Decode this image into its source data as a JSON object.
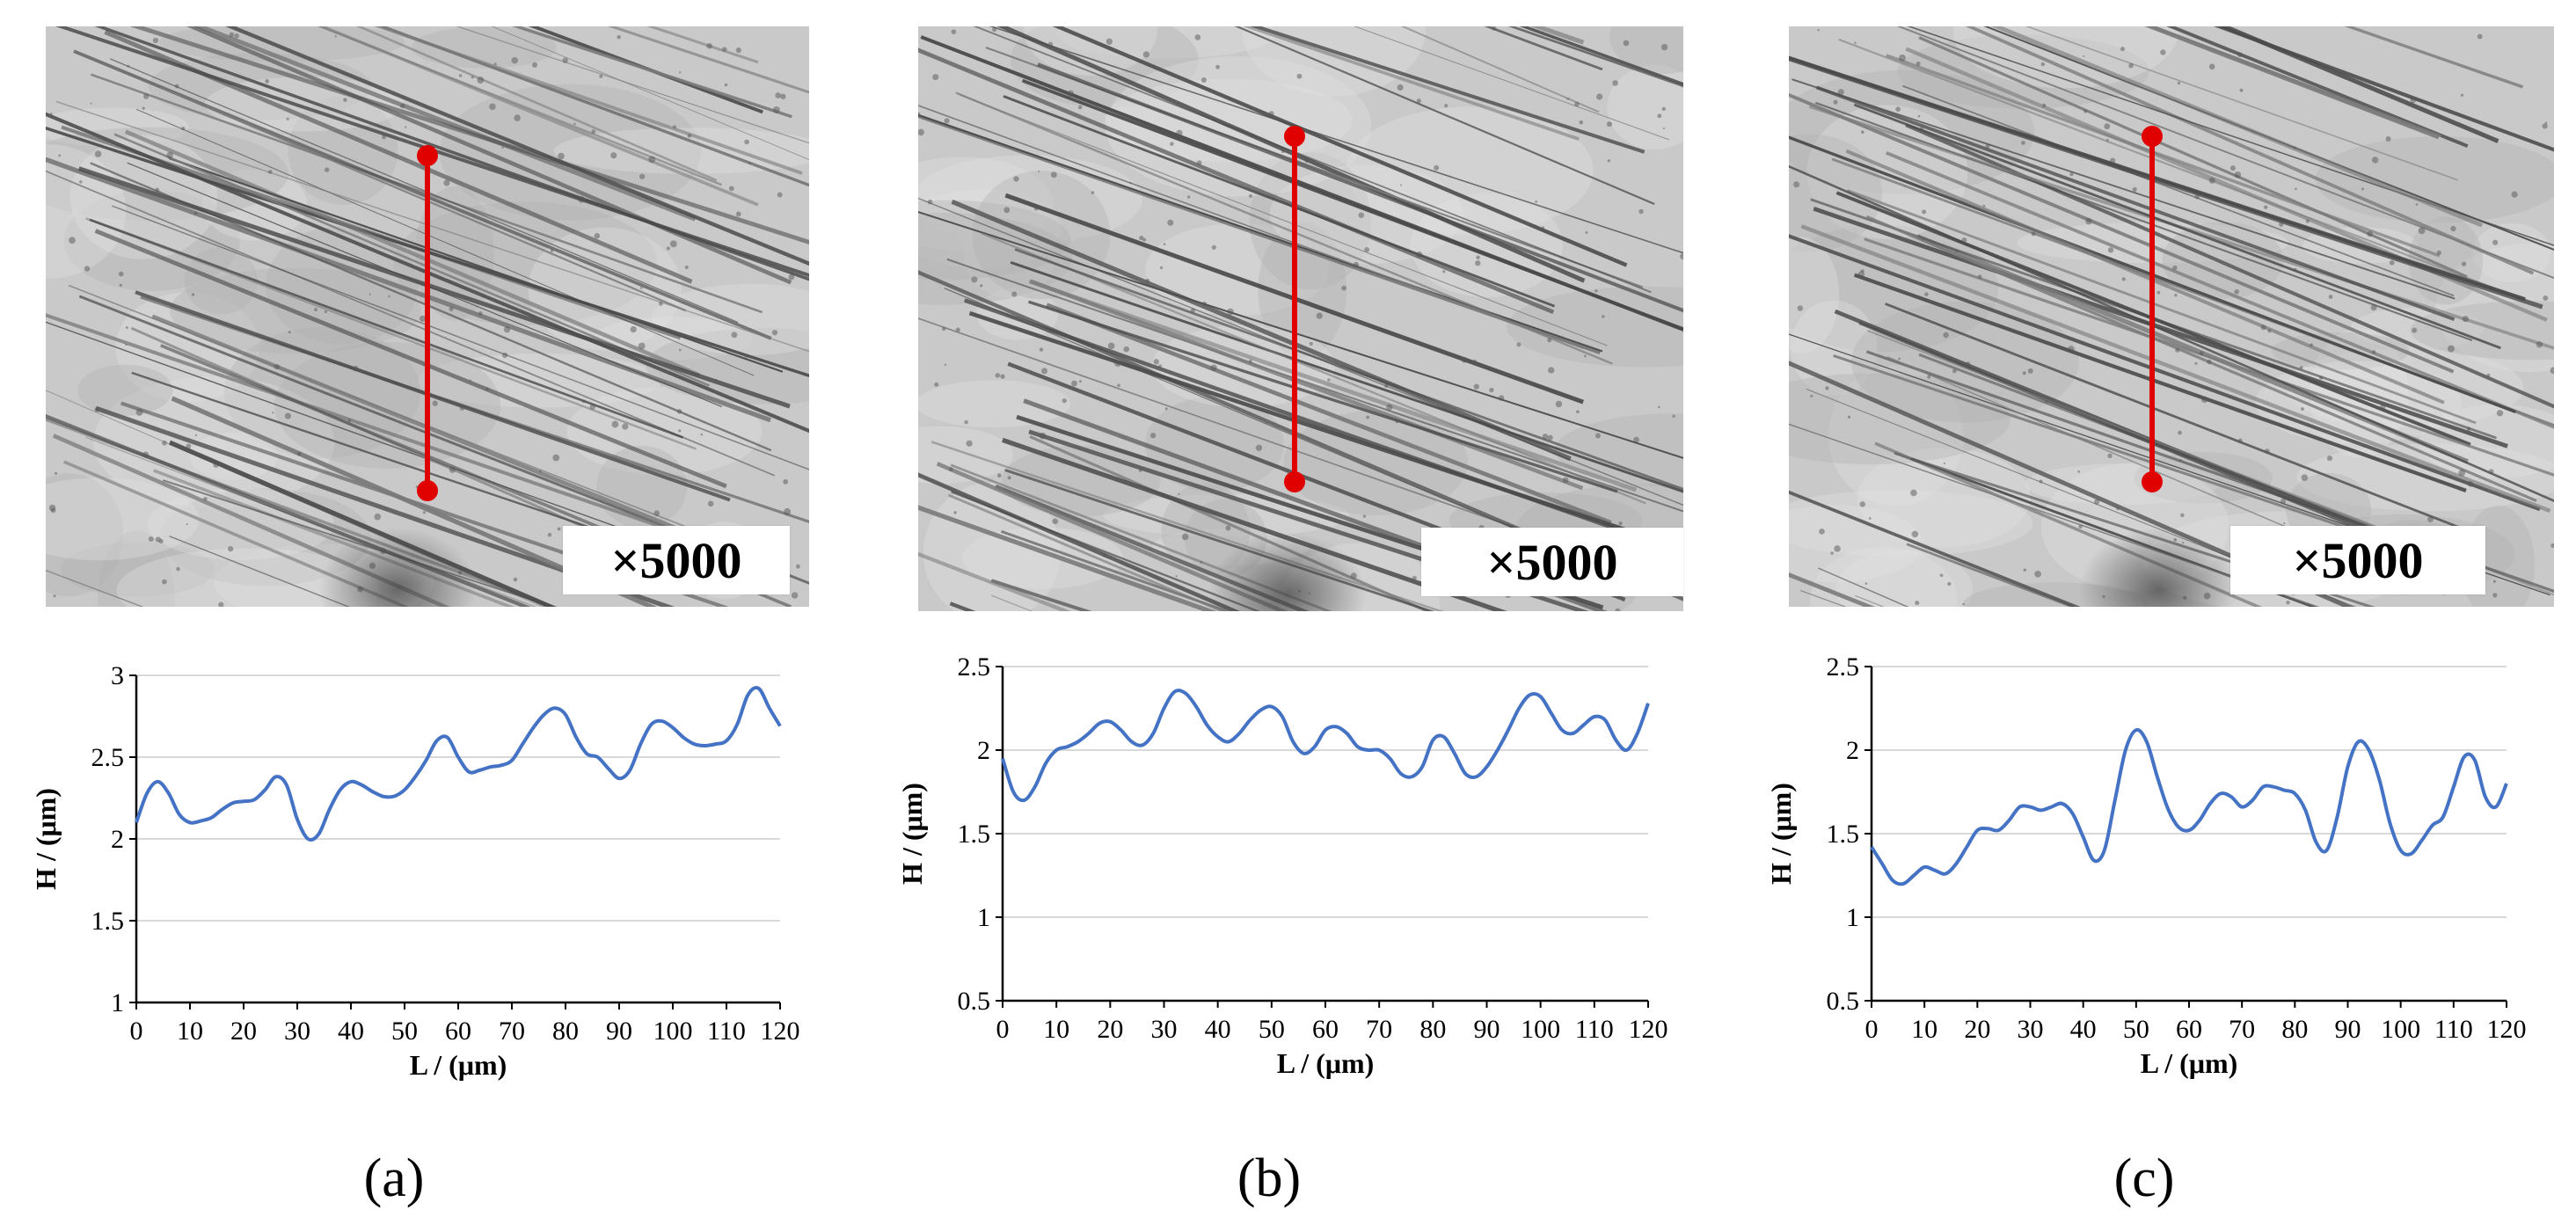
{
  "magnification_label": "×5000",
  "captions": [
    "(a)",
    "(b)",
    "(c)"
  ],
  "colors": {
    "line": "#4472C4",
    "marker": "#E00000",
    "grid": "#D9D9D9",
    "axis": "#000000"
  },
  "chart_data": [
    {
      "type": "line",
      "panel": "(a)",
      "xlabel": "L / (μm)",
      "ylabel": "H / (μm)",
      "xlim": [
        0,
        120
      ],
      "ylim": [
        1,
        3
      ],
      "xticks": [
        0,
        10,
        20,
        30,
        40,
        50,
        60,
        70,
        80,
        90,
        100,
        110,
        120
      ],
      "yticks": [
        1,
        1.5,
        2,
        2.5,
        3
      ],
      "ytick_labels": [
        "1",
        "1.5",
        "2",
        "2.5",
        "3"
      ],
      "x": [
        0,
        2,
        4,
        6,
        8,
        10,
        12,
        14,
        16,
        18,
        20,
        22,
        24,
        26,
        28,
        30,
        32,
        34,
        36,
        38,
        40,
        42,
        44,
        46,
        48,
        50,
        52,
        54,
        56,
        58,
        60,
        62,
        64,
        66,
        68,
        70,
        72,
        74,
        76,
        78,
        80,
        82,
        84,
        86,
        88,
        90,
        92,
        94,
        96,
        98,
        100,
        102,
        104,
        106,
        108,
        110,
        112,
        114,
        116,
        118,
        120
      ],
      "y": [
        2.1,
        2.28,
        2.35,
        2.28,
        2.15,
        2.1,
        2.11,
        2.13,
        2.18,
        2.22,
        2.23,
        2.24,
        2.3,
        2.38,
        2.33,
        2.12,
        2.0,
        2.03,
        2.18,
        2.3,
        2.35,
        2.33,
        2.29,
        2.26,
        2.26,
        2.3,
        2.38,
        2.48,
        2.6,
        2.62,
        2.5,
        2.41,
        2.42,
        2.44,
        2.45,
        2.48,
        2.58,
        2.68,
        2.76,
        2.8,
        2.76,
        2.62,
        2.52,
        2.5,
        2.43,
        2.37,
        2.42,
        2.58,
        2.7,
        2.72,
        2.68,
        2.62,
        2.58,
        2.57,
        2.58,
        2.6,
        2.7,
        2.88,
        2.92,
        2.8,
        2.69
      ]
    },
    {
      "type": "line",
      "panel": "(b)",
      "xlabel": "L / (μm)",
      "ylabel": "H / (μm)",
      "xlim": [
        0,
        120
      ],
      "ylim": [
        0.5,
        2.5
      ],
      "xticks": [
        0,
        10,
        20,
        30,
        40,
        50,
        60,
        70,
        80,
        90,
        100,
        110,
        120
      ],
      "yticks": [
        0.5,
        1,
        1.5,
        2,
        2.5
      ],
      "ytick_labels": [
        "0.5",
        "1",
        "1.5",
        "2",
        "2.5"
      ],
      "x": [
        0,
        2,
        4,
        6,
        8,
        10,
        12,
        14,
        16,
        18,
        20,
        22,
        24,
        26,
        28,
        30,
        32,
        34,
        36,
        38,
        40,
        42,
        44,
        46,
        48,
        50,
        52,
        54,
        56,
        58,
        60,
        62,
        64,
        66,
        68,
        70,
        72,
        74,
        76,
        78,
        80,
        82,
        84,
        86,
        88,
        90,
        92,
        94,
        96,
        98,
        100,
        102,
        104,
        106,
        108,
        110,
        112,
        114,
        116,
        118,
        120
      ],
      "y": [
        1.95,
        1.75,
        1.7,
        1.78,
        1.92,
        2.0,
        2.02,
        2.05,
        2.1,
        2.16,
        2.17,
        2.12,
        2.05,
        2.03,
        2.1,
        2.25,
        2.35,
        2.34,
        2.26,
        2.15,
        2.08,
        2.05,
        2.1,
        2.18,
        2.24,
        2.26,
        2.2,
        2.05,
        1.98,
        2.02,
        2.12,
        2.14,
        2.1,
        2.02,
        2.0,
        2.0,
        1.95,
        1.86,
        1.84,
        1.9,
        2.06,
        2.08,
        1.98,
        1.86,
        1.84,
        1.9,
        2.0,
        2.12,
        2.25,
        2.33,
        2.32,
        2.22,
        2.12,
        2.1,
        2.15,
        2.2,
        2.18,
        2.06,
        2.0,
        2.1,
        2.28
      ]
    },
    {
      "type": "line",
      "panel": "(c)",
      "xlabel": "L / (μm)",
      "ylabel": "H / (μm)",
      "xlim": [
        0,
        120
      ],
      "ylim": [
        0.5,
        2.5
      ],
      "xticks": [
        0,
        10,
        20,
        30,
        40,
        50,
        60,
        70,
        80,
        90,
        100,
        110,
        120
      ],
      "yticks": [
        0.5,
        1,
        1.5,
        2,
        2.5
      ],
      "ytick_labels": [
        "0.5",
        "1",
        "1.5",
        "2",
        "2.5"
      ],
      "x": [
        0,
        2,
        4,
        6,
        8,
        10,
        12,
        14,
        16,
        18,
        20,
        22,
        24,
        26,
        28,
        30,
        32,
        34,
        36,
        38,
        40,
        42,
        44,
        46,
        48,
        50,
        52,
        54,
        56,
        58,
        60,
        62,
        64,
        66,
        68,
        70,
        72,
        74,
        76,
        78,
        80,
        82,
        84,
        86,
        88,
        90,
        92,
        94,
        96,
        98,
        100,
        102,
        104,
        106,
        108,
        110,
        112,
        114,
        116,
        118,
        120
      ],
      "y": [
        1.42,
        1.32,
        1.22,
        1.2,
        1.25,
        1.3,
        1.28,
        1.26,
        1.32,
        1.42,
        1.52,
        1.53,
        1.52,
        1.58,
        1.66,
        1.66,
        1.64,
        1.66,
        1.68,
        1.62,
        1.48,
        1.34,
        1.4,
        1.7,
        2.0,
        2.12,
        2.05,
        1.84,
        1.65,
        1.54,
        1.52,
        1.58,
        1.68,
        1.74,
        1.72,
        1.66,
        1.7,
        1.78,
        1.78,
        1.76,
        1.74,
        1.64,
        1.45,
        1.4,
        1.6,
        1.9,
        2.05,
        2.0,
        1.82,
        1.56,
        1.4,
        1.38,
        1.46,
        1.55,
        1.6,
        1.78,
        1.96,
        1.94,
        1.72,
        1.66,
        1.8
      ]
    }
  ]
}
